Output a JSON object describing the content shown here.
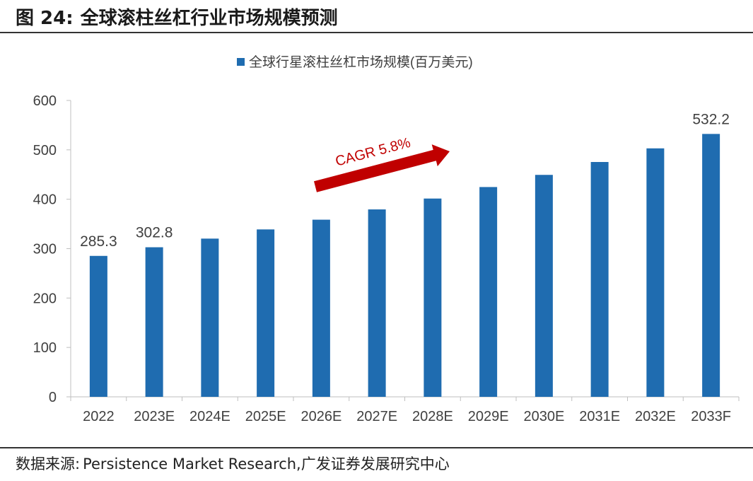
{
  "figure": {
    "label": "图 24:",
    "title": "全球滚柱丝杠行业市场规模预测"
  },
  "source": {
    "prefix": "数据来源:",
    "text": "Persistence Market Research,广发证券发展研究中心"
  },
  "annotation": {
    "text": "CAGR 5.8%",
    "color": "#c00000"
  },
  "colors": {
    "bar": "#1f6cb0",
    "axis": "#bfbfbf",
    "text": "#404040"
  },
  "chart_data": {
    "type": "bar",
    "legend": "全球行星滚柱丝杠市场规模(百万美元)",
    "legend_position": "top-center",
    "categories": [
      "2022",
      "2023E",
      "2024E",
      "2025E",
      "2026E",
      "2027E",
      "2028E",
      "2029E",
      "2030E",
      "2031E",
      "2032E",
      "2033F"
    ],
    "values": [
      285.3,
      302.8,
      320.3,
      338.9,
      358.6,
      379.4,
      401.4,
      424.7,
      449.3,
      475.4,
      503.0,
      532.2
    ],
    "data_labels": [
      "285.3",
      "302.8",
      "",
      "",
      "",
      "",
      "",
      "",
      "",
      "",
      "",
      "532.2"
    ],
    "ylim": [
      0,
      600
    ],
    "yticks": [
      0,
      100,
      200,
      300,
      400,
      500,
      600
    ],
    "grid": false
  }
}
